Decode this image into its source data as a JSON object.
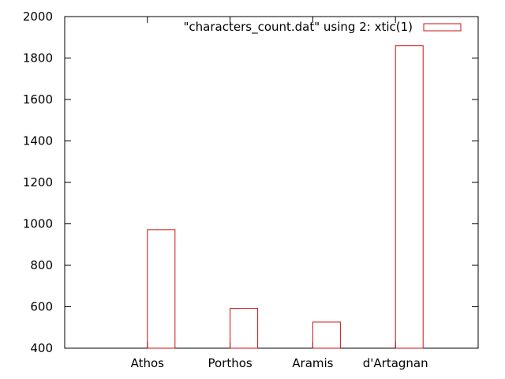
{
  "chart_data": {
    "type": "bar",
    "categories": [
      "Athos",
      "Porthos",
      "Aramis",
      "d'Artagnan"
    ],
    "series": [
      {
        "name": "\"characters_count.dat\" using 2: xtic(1)",
        "values": [
          972,
          592,
          526,
          1860
        ],
        "color": "#cc1111"
      }
    ],
    "ylim": [
      400,
      2000
    ],
    "yticks": [
      400,
      600,
      800,
      1000,
      1200,
      1400,
      1600,
      1800,
      2000
    ],
    "legend_position": "top-right",
    "grid": false
  }
}
